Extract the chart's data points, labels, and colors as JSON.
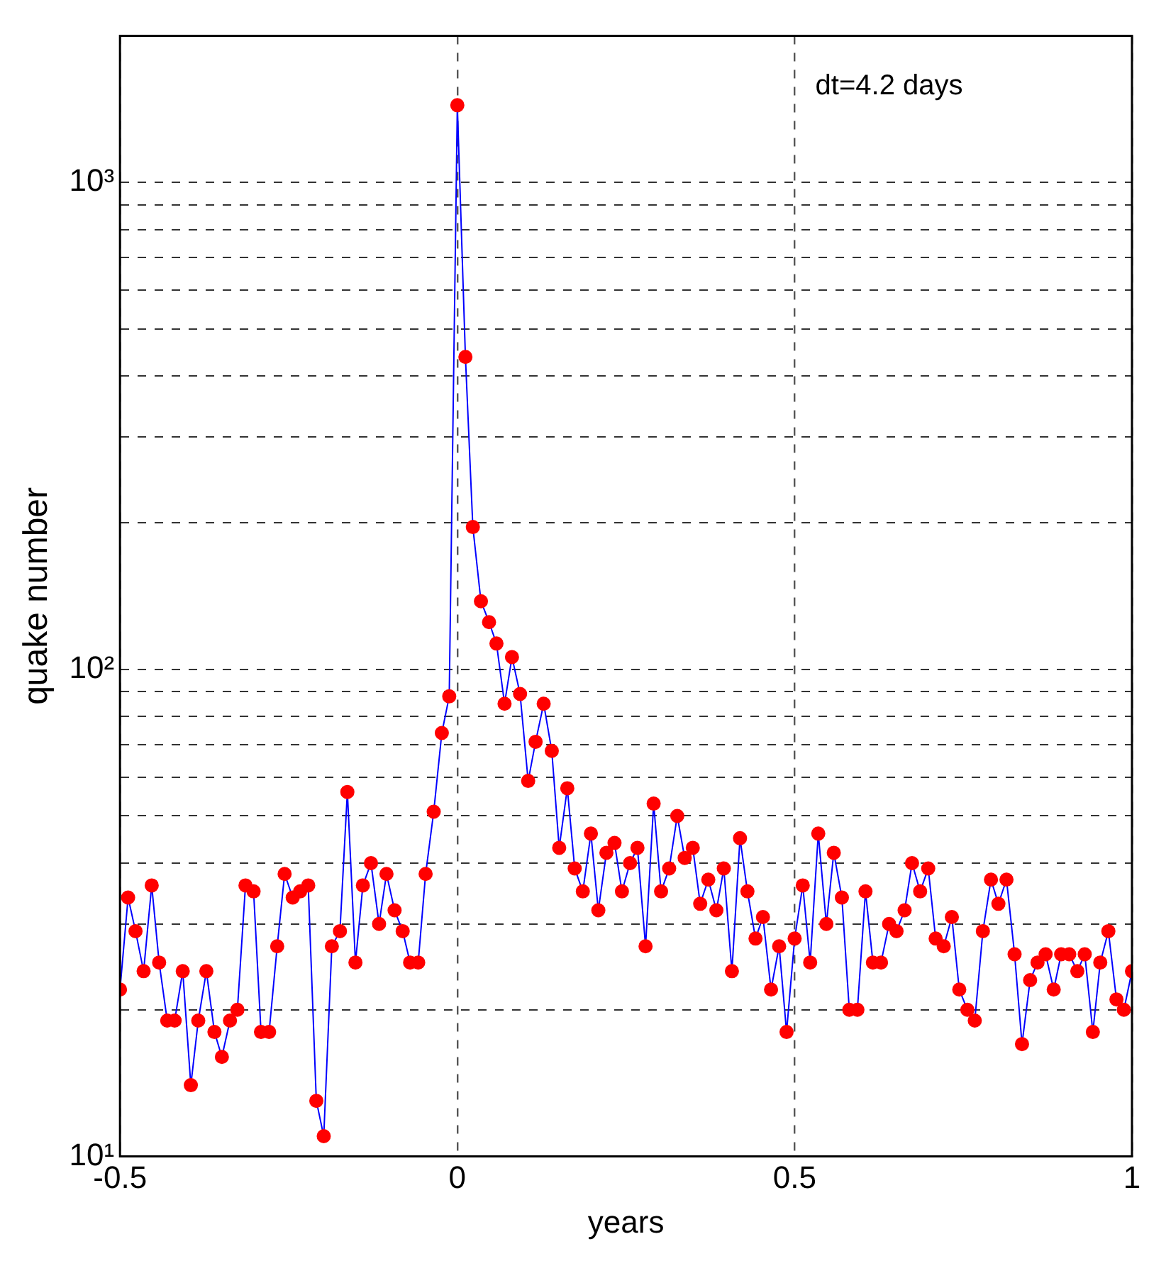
{
  "chart_data": {
    "type": "line",
    "xlabel": "years",
    "ylabel": "quake number",
    "annotations": [
      "dt=4.2 days"
    ],
    "log": "y",
    "grid": true,
    "marker": "circle",
    "line_style": "solid",
    "xlim": [
      -0.5,
      1
    ],
    "xticks": [
      -0.5,
      0,
      0.5,
      1
    ],
    "ylim": [
      10,
      2000
    ],
    "yticks": [
      {
        "value": 10,
        "label": "10¹"
      },
      {
        "value": 20,
        "label": null
      },
      {
        "value": 30,
        "label": null
      },
      {
        "value": 40,
        "label": null
      },
      {
        "value": 50,
        "label": null
      },
      {
        "value": 60,
        "label": null
      },
      {
        "value": 70,
        "label": null
      },
      {
        "value": 80,
        "label": null
      },
      {
        "value": 90,
        "label": null
      },
      {
        "value": 100,
        "label": "10²"
      },
      {
        "value": 200,
        "label": null
      },
      {
        "value": 300,
        "label": null
      },
      {
        "value": 400,
        "label": null
      },
      {
        "value": 500,
        "label": null
      },
      {
        "value": 600,
        "label": null
      },
      {
        "value": 700,
        "label": null
      },
      {
        "value": 800,
        "label": null
      },
      {
        "value": 900,
        "label": null
      },
      {
        "value": 1000,
        "label": "10³"
      }
    ],
    "x": [
      -0.5,
      -0.488,
      -0.477,
      -0.465,
      -0.453,
      -0.442,
      -0.43,
      -0.419,
      -0.407,
      -0.395,
      -0.384,
      -0.372,
      -0.36,
      -0.349,
      -0.337,
      -0.326,
      -0.314,
      -0.302,
      -0.291,
      -0.279,
      -0.267,
      -0.256,
      -0.244,
      -0.233,
      -0.221,
      -0.209,
      -0.198,
      -0.186,
      -0.174,
      -0.163,
      -0.151,
      -0.14,
      -0.128,
      -0.116,
      -0.105,
      -0.093,
      -0.081,
      -0.07,
      -0.058,
      -0.047,
      -0.035,
      -0.023,
      -0.012,
      0,
      0.012,
      0.023,
      0.035,
      0.047,
      0.058,
      0.07,
      0.081,
      0.093,
      0.105,
      0.116,
      0.128,
      0.14,
      0.151,
      0.163,
      0.174,
      0.186,
      0.198,
      0.209,
      0.221,
      0.233,
      0.244,
      0.256,
      0.267,
      0.279,
      0.291,
      0.302,
      0.314,
      0.326,
      0.337,
      0.349,
      0.36,
      0.372,
      0.384,
      0.395,
      0.407,
      0.419,
      0.43,
      0.442,
      0.453,
      0.465,
      0.477,
      0.488,
      0.5,
      0.512,
      0.523,
      0.535,
      0.547,
      0.558,
      0.57,
      0.581,
      0.593,
      0.605,
      0.616,
      0.628,
      0.64,
      0.651,
      0.663,
      0.674,
      0.686,
      0.698,
      0.709,
      0.721,
      0.733,
      0.744,
      0.756,
      0.767,
      0.779,
      0.791,
      0.802,
      0.814,
      0.826,
      0.837,
      0.849,
      0.86,
      0.872,
      0.884,
      0.895,
      0.907,
      0.919,
      0.93,
      0.942,
      0.953,
      0.965,
      0.977,
      0.988,
      1.0
    ],
    "series": [
      {
        "color": "#0000ff",
        "values": [
          22,
          34,
          29,
          24,
          36,
          25,
          19,
          19,
          24,
          14,
          19,
          24,
          18,
          16,
          19,
          20,
          36,
          35,
          18,
          18,
          27,
          38,
          34,
          35,
          36,
          13,
          11,
          27,
          29,
          56,
          25,
          36,
          40,
          30,
          38,
          32,
          29,
          25,
          25,
          38,
          51,
          74,
          88,
          1440,
          438,
          196,
          138,
          125,
          113,
          85,
          106,
          89,
          59,
          71,
          85,
          68,
          43,
          57,
          39,
          35,
          46,
          32,
          42,
          44,
          35,
          40,
          43,
          27,
          53,
          35,
          39,
          50,
          41,
          43,
          33,
          37,
          32,
          39,
          24,
          45,
          35,
          28,
          31,
          22,
          27,
          18,
          28,
          36,
          25,
          46,
          30,
          42,
          34,
          20,
          20,
          35,
          25,
          25,
          30,
          29,
          32,
          40,
          35,
          39,
          28,
          27,
          31,
          22,
          20,
          19,
          29,
          37,
          33,
          37,
          26,
          17,
          23,
          25,
          26,
          22,
          26,
          26,
          24,
          26,
          18,
          25,
          29,
          21,
          20,
          24
        ],
        "colors": [
          "#ff0000",
          "#ff0000",
          "#ff0000",
          "#ff0000",
          "#ff0000",
          "#ff0000",
          "#ff0000",
          "#ff0000",
          "#ff0000",
          "#ff0000",
          "#ff0000",
          "#ff0000",
          "#ff0000",
          "#ff0000",
          "#ff0000",
          "#ff0000",
          "#ff0000",
          "#ff0000",
          "#ff0000",
          "#ff0000",
          "#ff0000",
          "#ff0000",
          "#ff0000",
          "#ff0000",
          "#ff0000",
          "#ff0000",
          "#ff0000",
          "#ff0000",
          "#ff0000",
          "#ff0000",
          "#ff0000",
          "#ff0000",
          "#ff0000",
          "#ff0000",
          "#ff0000",
          "#ff0000",
          "#ff0000",
          "#ff0000",
          "#ff0000",
          "#ff0000",
          "#ff0000",
          "#ff0000",
          "#ff0000",
          "#ff0000",
          "#ff0000",
          "#ff0000",
          "#ff0000",
          "#ff0000",
          "#ff0000",
          "#ff0000",
          "#ff0000",
          "#ff0000",
          "#ff0000",
          "#ff0000",
          "#ff0000",
          "#ff0000",
          "#ff0000",
          "#ff0000",
          "#ff0000",
          "#ff0000",
          "#ff0000",
          "#ff0000",
          "#ff0000",
          "#ff0000",
          "#ff0000",
          "#ff0000",
          "#ff0000",
          "#ff0000",
          "#ff0000",
          "#ff0000",
          "#ff0000",
          "#ff0000",
          "#ff0000",
          "#ff0000",
          "#ff0000",
          "#ff0000",
          "#ff0000",
          "#ff0000",
          "#ff0000",
          "#ff0000",
          "#ff0000",
          "#ff0000",
          "#ff0000",
          "#ff0000",
          "#ff0000",
          "#ff0000",
          "#ff0000",
          "#ff0000",
          "#ff0000",
          "#ff0000",
          "#ff0000",
          "#ff0000",
          "#ff0000",
          "#ff0000",
          "#ff0000",
          "#ff0000",
          "#ff0000",
          "#ff0000",
          "#ff0000",
          "#ff0000",
          "#ff0000",
          "#ff0000",
          "#ff0000",
          "#ff0000",
          "#ff0000",
          "#ff0000",
          "#ff0000",
          "#ff0000",
          "#ff0000",
          "#ff0000",
          "#ff0000",
          "#ff0000",
          "#ff0000",
          "#ff0000",
          "#ff0000",
          "#ff0000",
          "#ff0000",
          "#ff0000",
          "#ff0000",
          "#ff0000",
          "#ff0000",
          "#ff0000",
          "#ff0000",
          "#ff0000",
          "#ff0000",
          "#ff0000",
          "#ff0000",
          "#ff0000",
          "#ff0000",
          "#ff0000"
        ]
      }
    ]
  }
}
